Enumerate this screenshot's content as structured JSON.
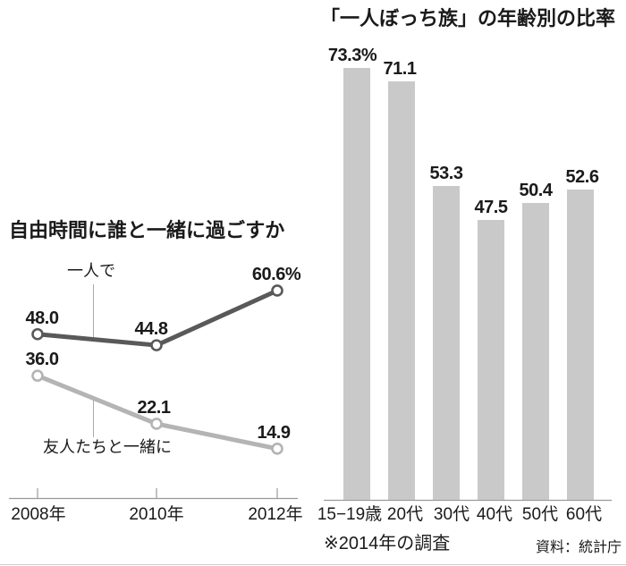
{
  "colors": {
    "background": "#ffffff",
    "text": "#1a1a1a",
    "axis": "#999999",
    "leader_line": "#aaaaaa",
    "bottom_rule": "#cfcfcf",
    "dark_series": "#58595b",
    "light_series": "#b4b4b4",
    "bar_fill": "#c9c9c9"
  },
  "chart_data": [
    {
      "type": "line",
      "title": "自由時間に誰と一緒に過ごすか",
      "x": [
        "2008年",
        "2010年",
        "2012年"
      ],
      "series": [
        {
          "name": "一人で",
          "values": [
            48.0,
            44.8,
            60.6
          ],
          "value_labels": [
            "48.0",
            "44.8",
            "60.6%"
          ],
          "color": "#58595b"
        },
        {
          "name": "友人たちと一緒に",
          "values": [
            36.0,
            22.1,
            14.9
          ],
          "value_labels": [
            "36.0",
            "22.1",
            "14.9"
          ],
          "color": "#b4b4b4"
        }
      ],
      "ylim": [
        0,
        80
      ],
      "grid": false,
      "legend_position": "inline-annotations",
      "marker": "open-circle"
    },
    {
      "type": "bar",
      "title": "「一人ぼっち族」の年齢別の比率",
      "categories": [
        "15−19歳",
        "20代",
        "30代",
        "40代",
        "50代",
        "60代"
      ],
      "values": [
        73.3,
        71.1,
        53.3,
        47.5,
        50.4,
        52.6
      ],
      "value_labels": [
        "73.3%",
        "71.1",
        "53.3",
        "47.5",
        "50.4",
        "52.6"
      ],
      "bar_color": "#c9c9c9",
      "ylim": [
        0,
        80
      ],
      "grid": false,
      "footnote": "※2014年の調査",
      "source": "資料：統計庁"
    }
  ]
}
